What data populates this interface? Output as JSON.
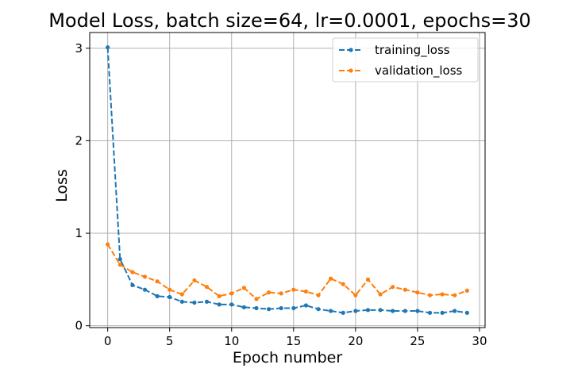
{
  "chart_data": {
    "type": "line",
    "title": "Model Loss, batch size=64, lr=0.0001, epochs=30",
    "xlabel": "Epoch number",
    "ylabel": "Loss",
    "xlim": [
      -1.45,
      30.45
    ],
    "ylim": [
      -0.02,
      3.17
    ],
    "xticks": [
      0,
      5,
      10,
      15,
      20,
      25,
      30
    ],
    "yticks": [
      0,
      1,
      2,
      3
    ],
    "grid": true,
    "legend_position": "top-right",
    "x": [
      0,
      1,
      2,
      3,
      4,
      5,
      6,
      7,
      8,
      9,
      10,
      11,
      12,
      13,
      14,
      15,
      16,
      17,
      18,
      19,
      20,
      21,
      22,
      23,
      24,
      25,
      26,
      27,
      28,
      29
    ],
    "series": [
      {
        "name": "training_loss",
        "color": "#1f77b4",
        "values": [
          3.01,
          0.72,
          0.44,
          0.39,
          0.32,
          0.31,
          0.26,
          0.25,
          0.26,
          0.23,
          0.23,
          0.2,
          0.19,
          0.18,
          0.19,
          0.19,
          0.22,
          0.18,
          0.16,
          0.14,
          0.16,
          0.17,
          0.17,
          0.16,
          0.16,
          0.16,
          0.14,
          0.14,
          0.16,
          0.14
        ]
      },
      {
        "name": "validation_loss",
        "color": "#ff7f0e",
        "values": [
          0.88,
          0.66,
          0.58,
          0.53,
          0.48,
          0.39,
          0.34,
          0.49,
          0.42,
          0.32,
          0.35,
          0.41,
          0.29,
          0.36,
          0.35,
          0.39,
          0.37,
          0.33,
          0.51,
          0.45,
          0.33,
          0.5,
          0.34,
          0.42,
          0.39,
          0.36,
          0.33,
          0.34,
          0.33,
          0.38
        ]
      }
    ]
  }
}
